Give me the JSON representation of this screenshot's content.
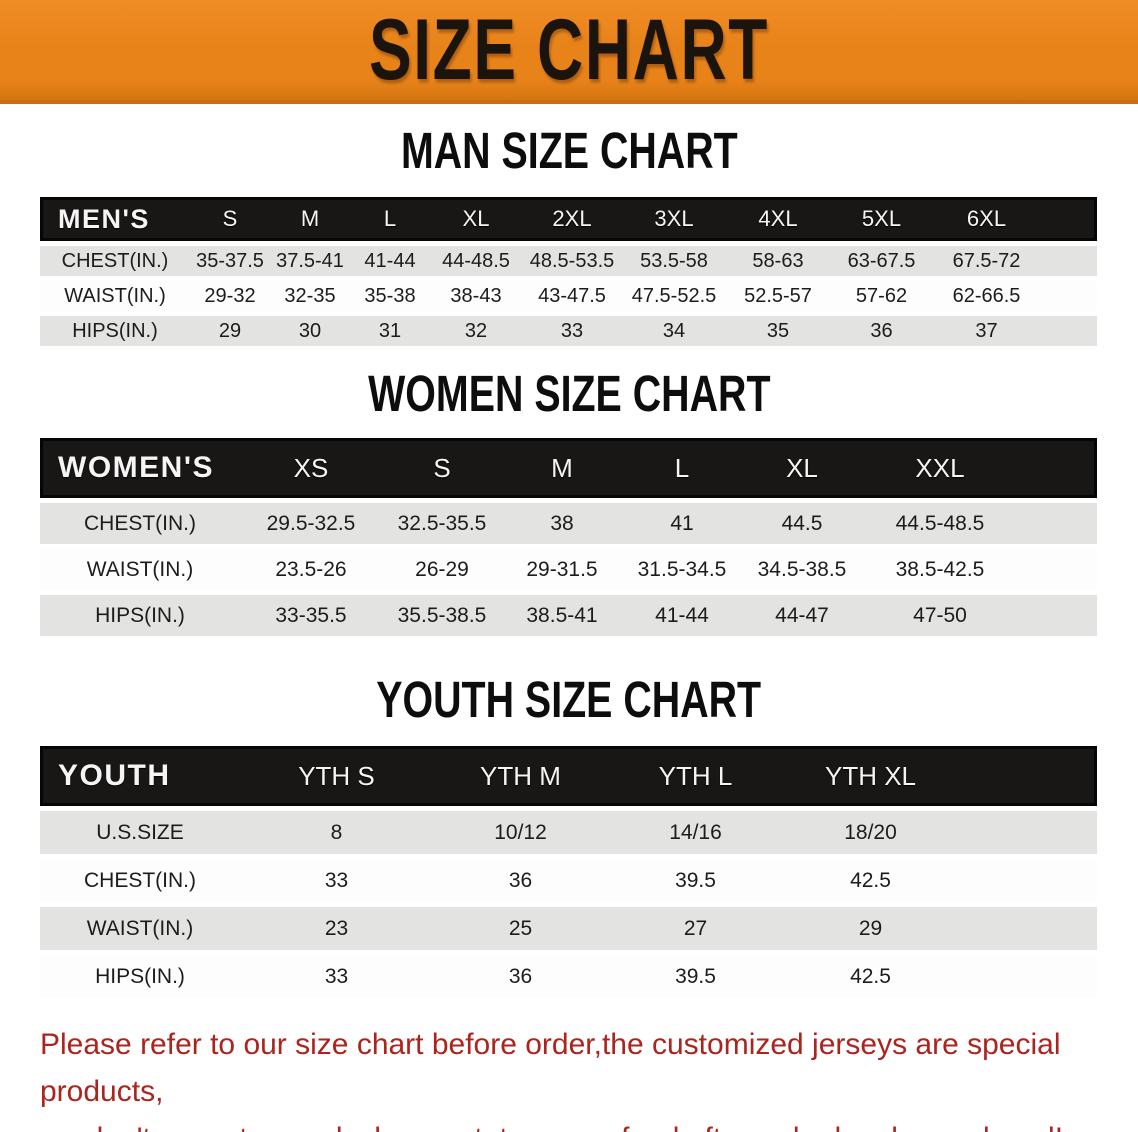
{
  "banner": {
    "title": "SIZE CHART"
  },
  "chart_data": [
    {
      "type": "table",
      "id": "men",
      "title": "MAN SIZE CHART",
      "corner_label": "MEN'S",
      "columns": [
        "S",
        "M",
        "L",
        "XL",
        "2XL",
        "3XL",
        "4XL",
        "5XL",
        "6XL"
      ],
      "rows": [
        {
          "label": "CHEST(IN.)",
          "values": [
            "35-37.5",
            "37.5-41",
            "41-44",
            "44-48.5",
            "48.5-53.5",
            "53.5-58",
            "58-63",
            "63-67.5",
            "67.5-72"
          ]
        },
        {
          "label": "WAIST(IN.)",
          "values": [
            "29-32",
            "32-35",
            "35-38",
            "38-43",
            "43-47.5",
            "47.5-52.5",
            "52.5-57",
            "57-62",
            "62-66.5"
          ]
        },
        {
          "label": "HIPS(IN.)",
          "values": [
            "29",
            "30",
            "31",
            "32",
            "33",
            "34",
            "35",
            "36",
            "37"
          ]
        }
      ]
    },
    {
      "type": "table",
      "id": "women",
      "title": "WOMEN SIZE CHART",
      "corner_label": "WOMEN'S",
      "columns": [
        "XS",
        "S",
        "M",
        "L",
        "XL",
        "XXL"
      ],
      "rows": [
        {
          "label": "CHEST(IN.)",
          "values": [
            "29.5-32.5",
            "32.5-35.5",
            "38",
            "41",
            "44.5",
            "44.5-48.5"
          ]
        },
        {
          "label": "WAIST(IN.)",
          "values": [
            "23.5-26",
            "26-29",
            "29-31.5",
            "31.5-34.5",
            "34.5-38.5",
            "38.5-42.5"
          ]
        },
        {
          "label": "HIPS(IN.)",
          "values": [
            "33-35.5",
            "35.5-38.5",
            "38.5-41",
            "41-44",
            "44-47",
            "47-50"
          ]
        }
      ]
    },
    {
      "type": "table",
      "id": "youth",
      "title": "YOUTH SIZE CHART",
      "corner_label": "YOUTH",
      "columns": [
        "YTH S",
        "YTH M",
        "YTH L",
        "YTH XL"
      ],
      "rows": [
        {
          "label": "U.S.SIZE",
          "values": [
            "8",
            "10/12",
            "14/16",
            "18/20"
          ]
        },
        {
          "label": "CHEST(IN.)",
          "values": [
            "33",
            "36",
            "39.5",
            "42.5"
          ]
        },
        {
          "label": "WAIST(IN.)",
          "values": [
            "23",
            "25",
            "27",
            "29"
          ]
        },
        {
          "label": "HIPS(IN.)",
          "values": [
            "33",
            "36",
            "39.5",
            "42.5"
          ]
        }
      ]
    }
  ],
  "footer": {
    "line1": "Please refer to our size chart before order,the customized jerseys are special products,",
    "line2": "we don't accept cancel, change, teturn or refund after order has been placed!"
  },
  "colors": {
    "banner_background": "#e8831a",
    "banner_text": "#1b140c",
    "header_bar": "#191715",
    "row_shade": "#e3e3e1",
    "footer_red": "#ab241d"
  }
}
